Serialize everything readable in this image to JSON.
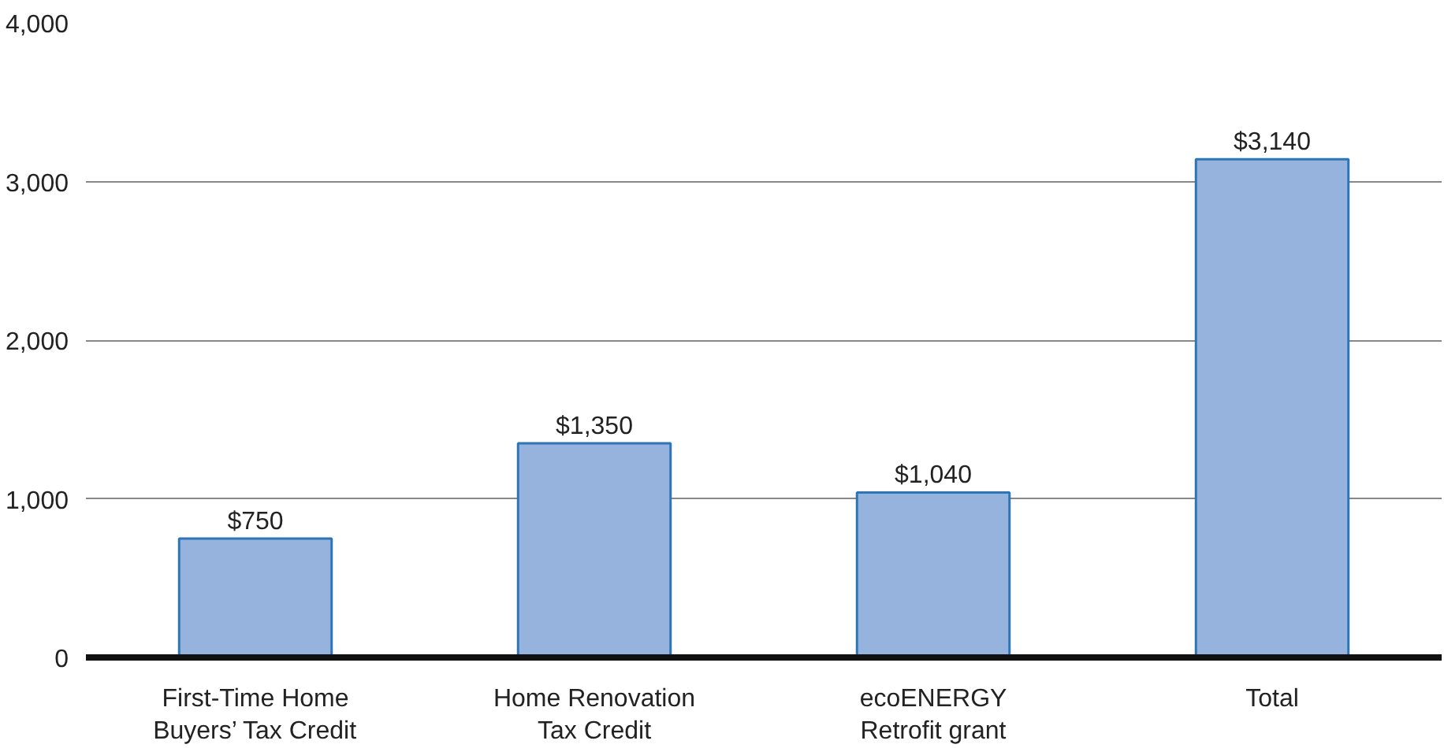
{
  "chart_data": {
    "type": "bar",
    "categories": [
      "First-Time Home\nBuyers’ Tax Credit",
      "Home Renovation\nTax Credit",
      "ecoENERGY\nRetrofit grant",
      "Total"
    ],
    "values": [
      750,
      1350,
      1040,
      3140
    ],
    "value_labels": [
      "$750",
      "$1,350",
      "$1,040",
      "$3,140"
    ],
    "color": "#95b3dd",
    "ylim": [
      0,
      4000
    ],
    "yticks": [
      0,
      {
        "value": 1000,
        "label": "1,000"
      },
      {
        "value": 2000,
        "label": "2,000"
      },
      {
        "value": 3000,
        "label": "3,000"
      },
      {
        "value": 4000,
        "label": "4,000"
      }
    ],
    "grid": "y"
  }
}
